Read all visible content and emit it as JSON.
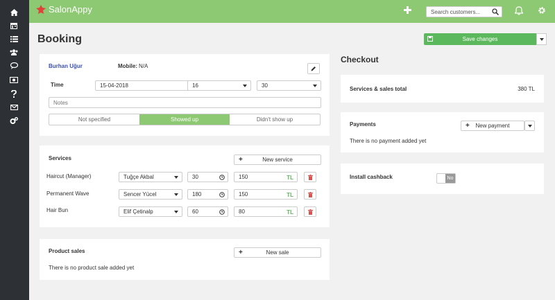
{
  "app": {
    "name": "SalonAppy"
  },
  "search": {
    "placeholder": "Search customers..."
  },
  "page": {
    "title": "Booking",
    "save_label": "Save changes"
  },
  "booking": {
    "customer_name": "Burhan Uğur",
    "mobile_label": "Mobile:",
    "mobile_value": "N/A",
    "time_label": "Time",
    "date": "15-04-2018",
    "hour": "16",
    "minute": "30",
    "notes_placeholder": "Notes",
    "attendance": [
      "Not specified",
      "Showed up",
      "Didn't show up"
    ],
    "attendance_selected": "Showed up"
  },
  "services": {
    "title": "Services",
    "new_button": "New service",
    "currency": "TL",
    "rows": [
      {
        "name": "Haircut (Manager)",
        "staff": "Tuğçe Akbal",
        "duration": "30",
        "price": "150"
      },
      {
        "name": "Permanent Wave",
        "staff": "Sencer Yücel",
        "duration": "180",
        "price": "150"
      },
      {
        "name": "Hair Bun",
        "staff": "Elif Çetinalp",
        "duration": "60",
        "price": "80"
      }
    ]
  },
  "product_sales": {
    "title": "Product sales",
    "new_button": "New sale",
    "empty_text": "There is no product sale added yet"
  },
  "checkout": {
    "title": "Checkout",
    "total_label": "Services & sales total",
    "total_value": "380 TL",
    "payments_label": "Payments",
    "new_payment": "New payment",
    "payments_empty": "There is no payment added yet",
    "cashback_label": "Install cashback",
    "cashback_toggle": "No"
  },
  "colors": {
    "accent": "#8dc872",
    "sidebar": "#2d3035",
    "save": "#5cb85c",
    "danger": "#d9534f",
    "link": "#3a4fb5"
  }
}
